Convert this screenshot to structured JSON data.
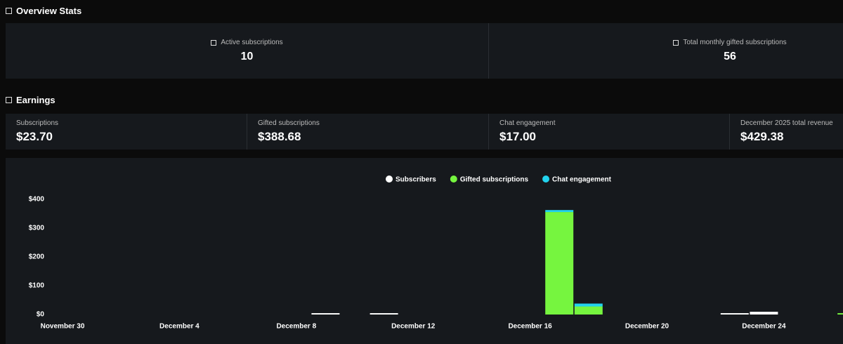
{
  "overview": {
    "title": "Overview Stats",
    "stats": [
      {
        "label": "Active subscriptions",
        "value": 10
      },
      {
        "label": "Total monthly gifted subscriptions",
        "value": 56
      }
    ]
  },
  "earnings": {
    "title": "Earnings",
    "cards": [
      {
        "label": "Subscriptions",
        "value": "$23.70"
      },
      {
        "label": "Gifted subscriptions",
        "value": "$388.68"
      },
      {
        "label": "Chat engagement",
        "value": "$17.00"
      },
      {
        "label": "December 2025 total revenue",
        "value": "$429.38"
      }
    ]
  },
  "chart_data": {
    "type": "bar",
    "stacked": true,
    "legend": "top",
    "categories": [
      "November 30",
      null,
      null,
      null,
      "December 4",
      null,
      null,
      null,
      "December 8",
      null,
      null,
      null,
      "December 12",
      null,
      null,
      null,
      "December 16",
      null,
      null,
      null,
      "December 20",
      null,
      null,
      null,
      "December 24",
      null,
      null,
      null
    ],
    "series": [
      {
        "name": "Subscribers",
        "color": "#ffffff",
        "values": [
          0,
          0,
          0,
          0,
          0,
          0,
          0,
          0,
          0,
          4.74,
          0,
          4.74,
          0,
          0,
          0,
          0,
          0,
          0,
          0,
          0,
          0,
          0,
          0,
          4.74,
          9.48,
          0,
          0,
          0
        ]
      },
      {
        "name": "Gifted subscriptions",
        "color": "#76f53f",
        "values": [
          0,
          0,
          0,
          0,
          0,
          0,
          0,
          0,
          0,
          0,
          0,
          0,
          0,
          0,
          0,
          0,
          0,
          356,
          28,
          0,
          0,
          0,
          0,
          0,
          0,
          0,
          0,
          4.68
        ]
      },
      {
        "name": "Chat engagement",
        "color": "#22d3ee",
        "values": [
          0,
          0,
          0,
          0,
          0,
          0,
          0,
          0,
          0,
          0,
          0,
          0,
          0,
          0,
          0,
          0,
          0,
          7,
          10,
          0,
          0,
          0,
          0,
          0,
          0,
          0,
          0,
          0
        ]
      }
    ],
    "ylim": [
      0,
      400
    ],
    "yticks": [
      {
        "value": 0,
        "label": "$0"
      },
      {
        "value": 100,
        "label": "$100"
      },
      {
        "value": 200,
        "label": "$200"
      },
      {
        "value": 300,
        "label": "$300"
      },
      {
        "value": 400,
        "label": "$400"
      }
    ]
  }
}
